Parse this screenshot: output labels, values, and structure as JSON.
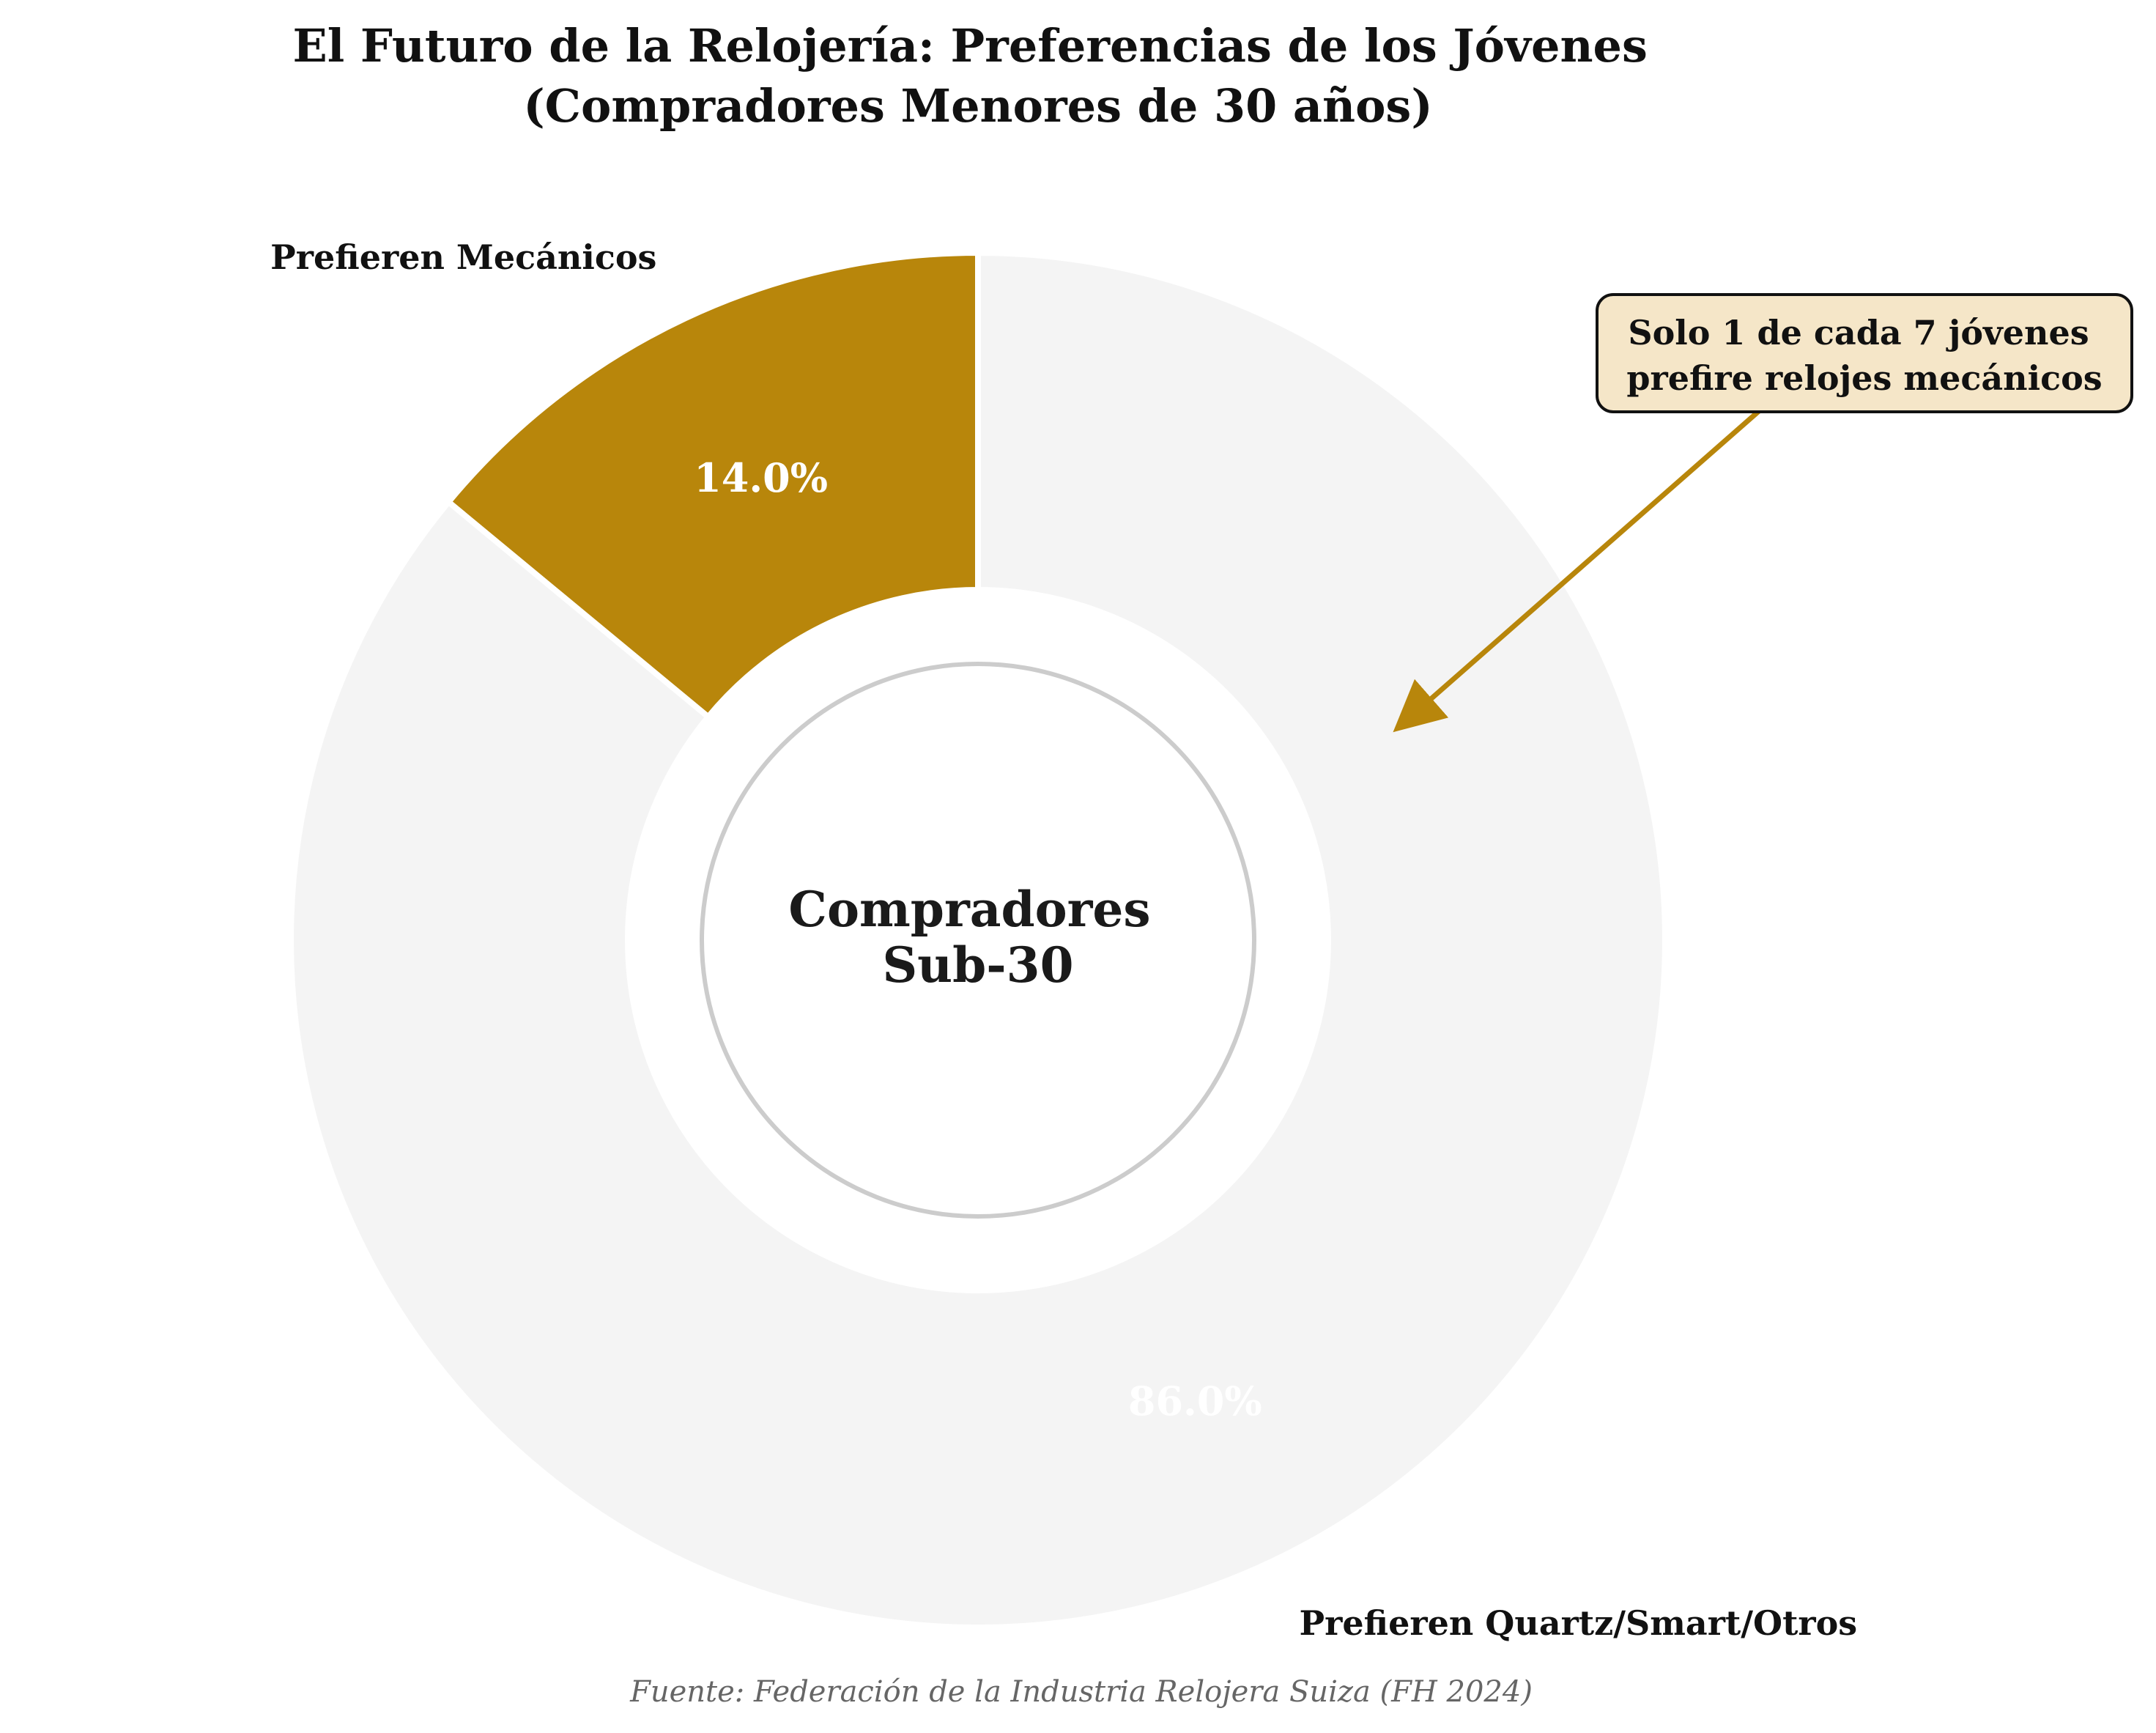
{
  "chart_data": {
    "type": "pie",
    "variant": "donut",
    "title": "El Futuro de la Relojería: Preferencias de los Jóvenes\n(Compradores Menores de 30 años)",
    "slices": [
      {
        "label": "Prefieren Mecánicos",
        "value": 14.0,
        "value_label": "14.0%",
        "color": "#B8860B"
      },
      {
        "label": "Prefieren Quartz/Smart/Otros",
        "value": 86.0,
        "value_label": "86.0%",
        "color": "#F4F4F4"
      }
    ],
    "center_text": "Compradores\nSub-30",
    "annotation": {
      "text": "Solo 1 de cada 7 jóvenes\nprefire relojes mecánicos",
      "box_fill": "#F5E6C8",
      "arrow_color": "#B8860B"
    },
    "source": "Fuente: Federación de la Industria Relojera Suiza (FH 2024)",
    "legend": "none"
  }
}
